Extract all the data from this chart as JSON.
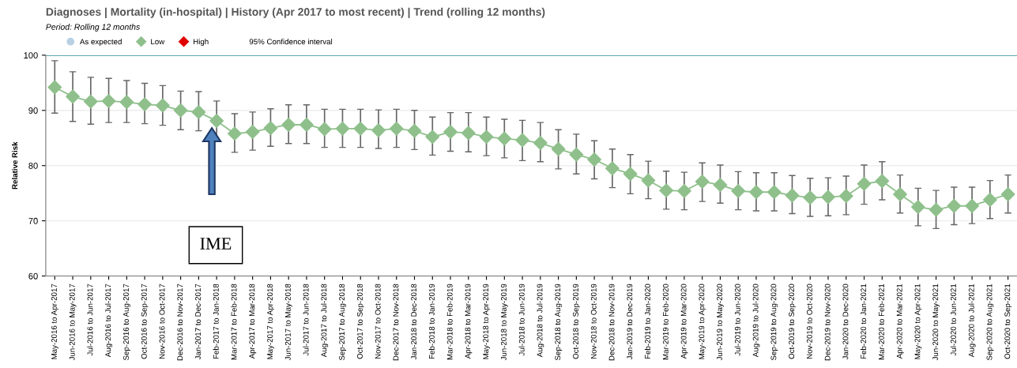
{
  "chart_data": {
    "type": "line",
    "title": "Diagnoses | Mortality (in-hospital) | History (Apr 2017 to most recent) | Trend (rolling 12 months)",
    "subtitle": "Period: Rolling 12 months",
    "ylabel": "Relative Risk",
    "categories": [
      "May-2016 to Apr-2017",
      "Jun-2016 to May-2017",
      "Jul-2016 to Jun-2017",
      "Aug-2016 to Jul-2017",
      "Sep-2016 to Aug-2017",
      "Oct-2016 to Sep-2017",
      "Nov-2016 to Oct-2017",
      "Dec-2016 to Nov-2017",
      "Jan-2017 to Dec-2017",
      "Feb-2017 to Jan-2018",
      "Mar-2017 to Feb-2018",
      "Apr-2017 to Mar-2018",
      "May-2017 to Apr-2018",
      "Jun-2017 to May-2018",
      "Jul-2017 to Jun-2018",
      "Aug-2017 to Jul-2018",
      "Sep-2017 to Aug-2018",
      "Oct-2017 to Sep-2018",
      "Nov-2017 to Oct-2018",
      "Dec-2017 to Nov-2018",
      "Jan-2018 to Dec-2018",
      "Feb-2018 to Jan-2019",
      "Mar-2018 to Feb-2019",
      "Apr-2018 to Mar-2019",
      "May-2018 to Apr-2019",
      "Jun-2018 to May-2019",
      "Jul-2018 to Jun-2019",
      "Aug-2018 to Jul-2019",
      "Sep-2018 to Aug-2019",
      "Oct-2018 to Sep-2019",
      "Nov-2018 to Oct-2019",
      "Dec-2018 to Nov-2019",
      "Jan-2019 to Dec-2019",
      "Feb-2019 to Jan-2020",
      "Mar-2019 to Feb-2020",
      "Apr-2019 to Mar-2020",
      "May-2019 to Apr-2020",
      "Jun-2019 to May-2020",
      "Jul-2019 to Jun-2020",
      "Aug-2019 to Jul-2020",
      "Sep-2019 to Aug-2020",
      "Oct-2019 to Sep-2020",
      "Nov-2019 to Oct-2020",
      "Dec-2019 to Nov-2020",
      "Jan-2020 to Dec-2020",
      "Feb-2020 to Jan-2021",
      "Mar-2020 to Feb-2021",
      "Apr-2020 to Mar-2021",
      "May-2020 to Apr-2021",
      "Jun-2020 to May-2021",
      "Jul-2020 to Jun-2021",
      "Aug-2020 to Jul-2021",
      "Sep-2020 to Aug-2021",
      "Oct-2020 to Sep-2021"
    ],
    "series": [
      {
        "name": "As expected",
        "color": "#b7d0e4",
        "marker": "circle",
        "values": [
          null,
          null,
          null,
          null,
          null,
          null,
          null,
          null,
          null,
          null,
          null,
          null,
          null,
          null,
          null,
          null,
          null,
          null,
          null,
          null,
          null,
          null,
          null,
          null,
          null,
          null,
          null,
          null,
          null,
          null,
          null,
          null,
          null,
          null,
          null,
          null,
          null,
          null,
          null,
          null,
          null,
          null,
          null,
          null,
          null,
          null,
          null,
          null,
          null,
          null,
          null,
          null,
          null,
          null
        ]
      },
      {
        "name": "Low",
        "color": "#8fc08c",
        "marker": "diamond",
        "values": [
          94.2,
          92.5,
          91.6,
          91.7,
          91.5,
          91.1,
          90.9,
          90.0,
          89.7,
          88.1,
          85.8,
          86.1,
          86.8,
          87.4,
          87.4,
          86.6,
          86.7,
          86.7,
          86.4,
          86.7,
          86.3,
          85.2,
          86.1,
          85.9,
          85.2,
          84.9,
          84.6,
          84.1,
          83.0,
          82.0,
          81.1,
          79.5,
          78.5,
          77.3,
          75.5,
          75.4,
          77.1,
          76.5,
          75.4,
          75.2,
          75.2,
          74.6,
          74.2,
          74.3,
          74.5,
          76.7,
          77.2,
          74.8,
          72.5,
          72.0,
          72.7,
          72.7,
          73.8,
          74.8
        ],
        "errors": [
          [
            89.5,
            99.0
          ],
          [
            88.0,
            97.0
          ],
          [
            87.5,
            96.0
          ],
          [
            87.8,
            95.8
          ],
          [
            87.8,
            95.4
          ],
          [
            87.6,
            94.9
          ],
          [
            87.3,
            94.5
          ],
          [
            86.5,
            93.5
          ],
          [
            86.3,
            93.4
          ],
          [
            84.5,
            91.7
          ],
          [
            82.4,
            89.4
          ],
          [
            82.8,
            89.7
          ],
          [
            83.5,
            90.3
          ],
          [
            84.0,
            91.0
          ],
          [
            84.0,
            91.0
          ],
          [
            83.3,
            90.2
          ],
          [
            83.3,
            90.2
          ],
          [
            83.3,
            90.2
          ],
          [
            83.1,
            90.1
          ],
          [
            83.3,
            90.2
          ],
          [
            82.9,
            90.0
          ],
          [
            81.9,
            88.8
          ],
          [
            82.6,
            89.6
          ],
          [
            82.5,
            89.6
          ],
          [
            81.8,
            88.8
          ],
          [
            81.4,
            88.4
          ],
          [
            80.9,
            88.2
          ],
          [
            80.7,
            87.8
          ],
          [
            79.4,
            86.5
          ],
          [
            78.5,
            85.7
          ],
          [
            77.6,
            84.5
          ],
          [
            76.0,
            83.0
          ],
          [
            74.9,
            82.0
          ],
          [
            74.0,
            80.8
          ],
          [
            72.1,
            79.0
          ],
          [
            72.0,
            78.8
          ],
          [
            73.5,
            80.5
          ],
          [
            73.2,
            80.1
          ],
          [
            72.0,
            78.9
          ],
          [
            71.8,
            78.7
          ],
          [
            71.8,
            78.7
          ],
          [
            71.3,
            78.2
          ],
          [
            70.8,
            77.7
          ],
          [
            70.9,
            77.8
          ],
          [
            71.1,
            78.1
          ],
          [
            73.0,
            80.1
          ],
          [
            73.8,
            80.7
          ],
          [
            71.4,
            78.3
          ],
          [
            69.1,
            75.9
          ],
          [
            68.6,
            75.5
          ],
          [
            69.3,
            76.1
          ],
          [
            69.5,
            76.1
          ],
          [
            70.4,
            77.3
          ],
          [
            71.4,
            78.3
          ]
        ]
      },
      {
        "name": "High",
        "color": "#e00000",
        "marker": "diamond",
        "values": [
          null,
          null,
          null,
          null,
          null,
          null,
          null,
          null,
          null,
          null,
          null,
          null,
          null,
          null,
          null,
          null,
          null,
          null,
          null,
          null,
          null,
          null,
          null,
          null,
          null,
          null,
          null,
          null,
          null,
          null,
          null,
          null,
          null,
          null,
          null,
          null,
          null,
          null,
          null,
          null,
          null,
          null,
          null,
          null,
          null,
          null,
          null,
          null,
          null,
          null,
          null,
          null,
          null,
          null
        ]
      }
    ],
    "ylim": [
      60,
      100
    ],
    "yticks": [
      60,
      70,
      80,
      90,
      100
    ],
    "grid": "y",
    "legend": "top left",
    "ref_lines": [
      {
        "axis": "y",
        "value": 100,
        "color": "#5fa8b0"
      }
    ],
    "annotations": [
      "95% Confidence interval",
      "IME"
    ]
  }
}
